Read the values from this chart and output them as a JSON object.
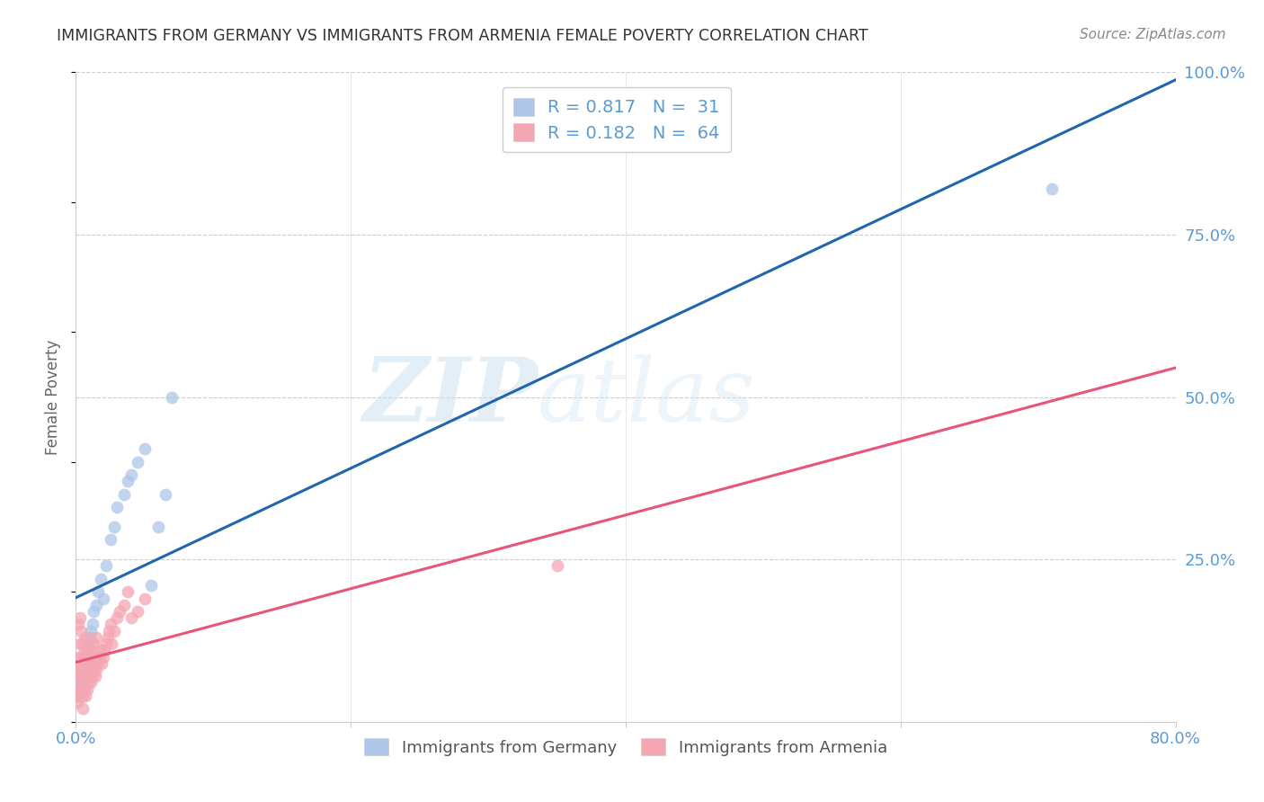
{
  "title": "IMMIGRANTS FROM GERMANY VS IMMIGRANTS FROM ARMENIA FEMALE POVERTY CORRELATION CHART",
  "source": "Source: ZipAtlas.com",
  "ylabel": "Female Poverty",
  "xlim": [
    0,
    0.8
  ],
  "ylim": [
    0,
    1.0
  ],
  "xtick_positions": [
    0.0,
    0.2,
    0.4,
    0.6,
    0.8
  ],
  "xtick_labels": [
    "0.0%",
    "",
    "",
    "",
    "80.0%"
  ],
  "ytick_positions": [
    0.0,
    0.25,
    0.5,
    0.75,
    1.0
  ],
  "ytick_labels_right": [
    "",
    "25.0%",
    "50.0%",
    "75.0%",
    "100.0%"
  ],
  "grid_color": "#cccccc",
  "watermark_zip": "ZIP",
  "watermark_atlas": "atlas",
  "series": [
    {
      "name": "Immigrants from Germany",
      "R": 0.817,
      "N": 31,
      "scatter_color": "#aec6e8",
      "scatter_edge": "#aec6e8",
      "line_color": "#2166ac",
      "line_style": "solid",
      "x": [
        0.001,
        0.002,
        0.003,
        0.004,
        0.005,
        0.006,
        0.007,
        0.008,
        0.009,
        0.01,
        0.011,
        0.012,
        0.013,
        0.015,
        0.016,
        0.018,
        0.02,
        0.022,
        0.025,
        0.028,
        0.03,
        0.035,
        0.038,
        0.04,
        0.045,
        0.05,
        0.055,
        0.06,
        0.065,
        0.07,
        0.71
      ],
      "y": [
        0.04,
        0.05,
        0.06,
        0.07,
        0.08,
        0.1,
        0.09,
        0.11,
        0.12,
        0.13,
        0.14,
        0.15,
        0.17,
        0.18,
        0.2,
        0.22,
        0.19,
        0.24,
        0.28,
        0.3,
        0.33,
        0.35,
        0.37,
        0.38,
        0.4,
        0.42,
        0.21,
        0.3,
        0.35,
        0.5,
        0.82
      ]
    },
    {
      "name": "Immigrants from Armenia",
      "R": 0.182,
      "N": 64,
      "scatter_color": "#f4a7b3",
      "scatter_edge": "#f4a7b3",
      "line_color": "#e8547a",
      "line_style": "solid",
      "x": [
        0.001,
        0.001,
        0.001,
        0.002,
        0.002,
        0.002,
        0.002,
        0.003,
        0.003,
        0.003,
        0.003,
        0.004,
        0.004,
        0.004,
        0.004,
        0.005,
        0.005,
        0.005,
        0.005,
        0.006,
        0.006,
        0.006,
        0.007,
        0.007,
        0.007,
        0.007,
        0.008,
        0.008,
        0.008,
        0.009,
        0.009,
        0.01,
        0.01,
        0.011,
        0.011,
        0.012,
        0.012,
        0.013,
        0.013,
        0.014,
        0.014,
        0.015,
        0.015,
        0.016,
        0.017,
        0.018,
        0.019,
        0.02,
        0.021,
        0.022,
        0.023,
        0.024,
        0.025,
        0.026,
        0.028,
        0.03,
        0.032,
        0.035,
        0.038,
        0.04,
        0.045,
        0.05,
        0.35,
        0.005
      ],
      "y": [
        0.03,
        0.05,
        0.08,
        0.04,
        0.07,
        0.1,
        0.15,
        0.05,
        0.08,
        0.12,
        0.16,
        0.04,
        0.07,
        0.1,
        0.14,
        0.04,
        0.06,
        0.09,
        0.12,
        0.05,
        0.08,
        0.11,
        0.04,
        0.07,
        0.1,
        0.13,
        0.05,
        0.08,
        0.11,
        0.06,
        0.09,
        0.07,
        0.1,
        0.06,
        0.09,
        0.07,
        0.11,
        0.08,
        0.12,
        0.07,
        0.1,
        0.08,
        0.13,
        0.09,
        0.1,
        0.11,
        0.09,
        0.1,
        0.11,
        0.12,
        0.13,
        0.14,
        0.15,
        0.12,
        0.14,
        0.16,
        0.17,
        0.18,
        0.2,
        0.16,
        0.17,
        0.19,
        0.24,
        0.02
      ]
    }
  ],
  "title_color": "#333333",
  "source_color": "#888888",
  "axis_color": "#5b9bd5",
  "ylabel_color": "#666666",
  "background_color": "#ffffff"
}
